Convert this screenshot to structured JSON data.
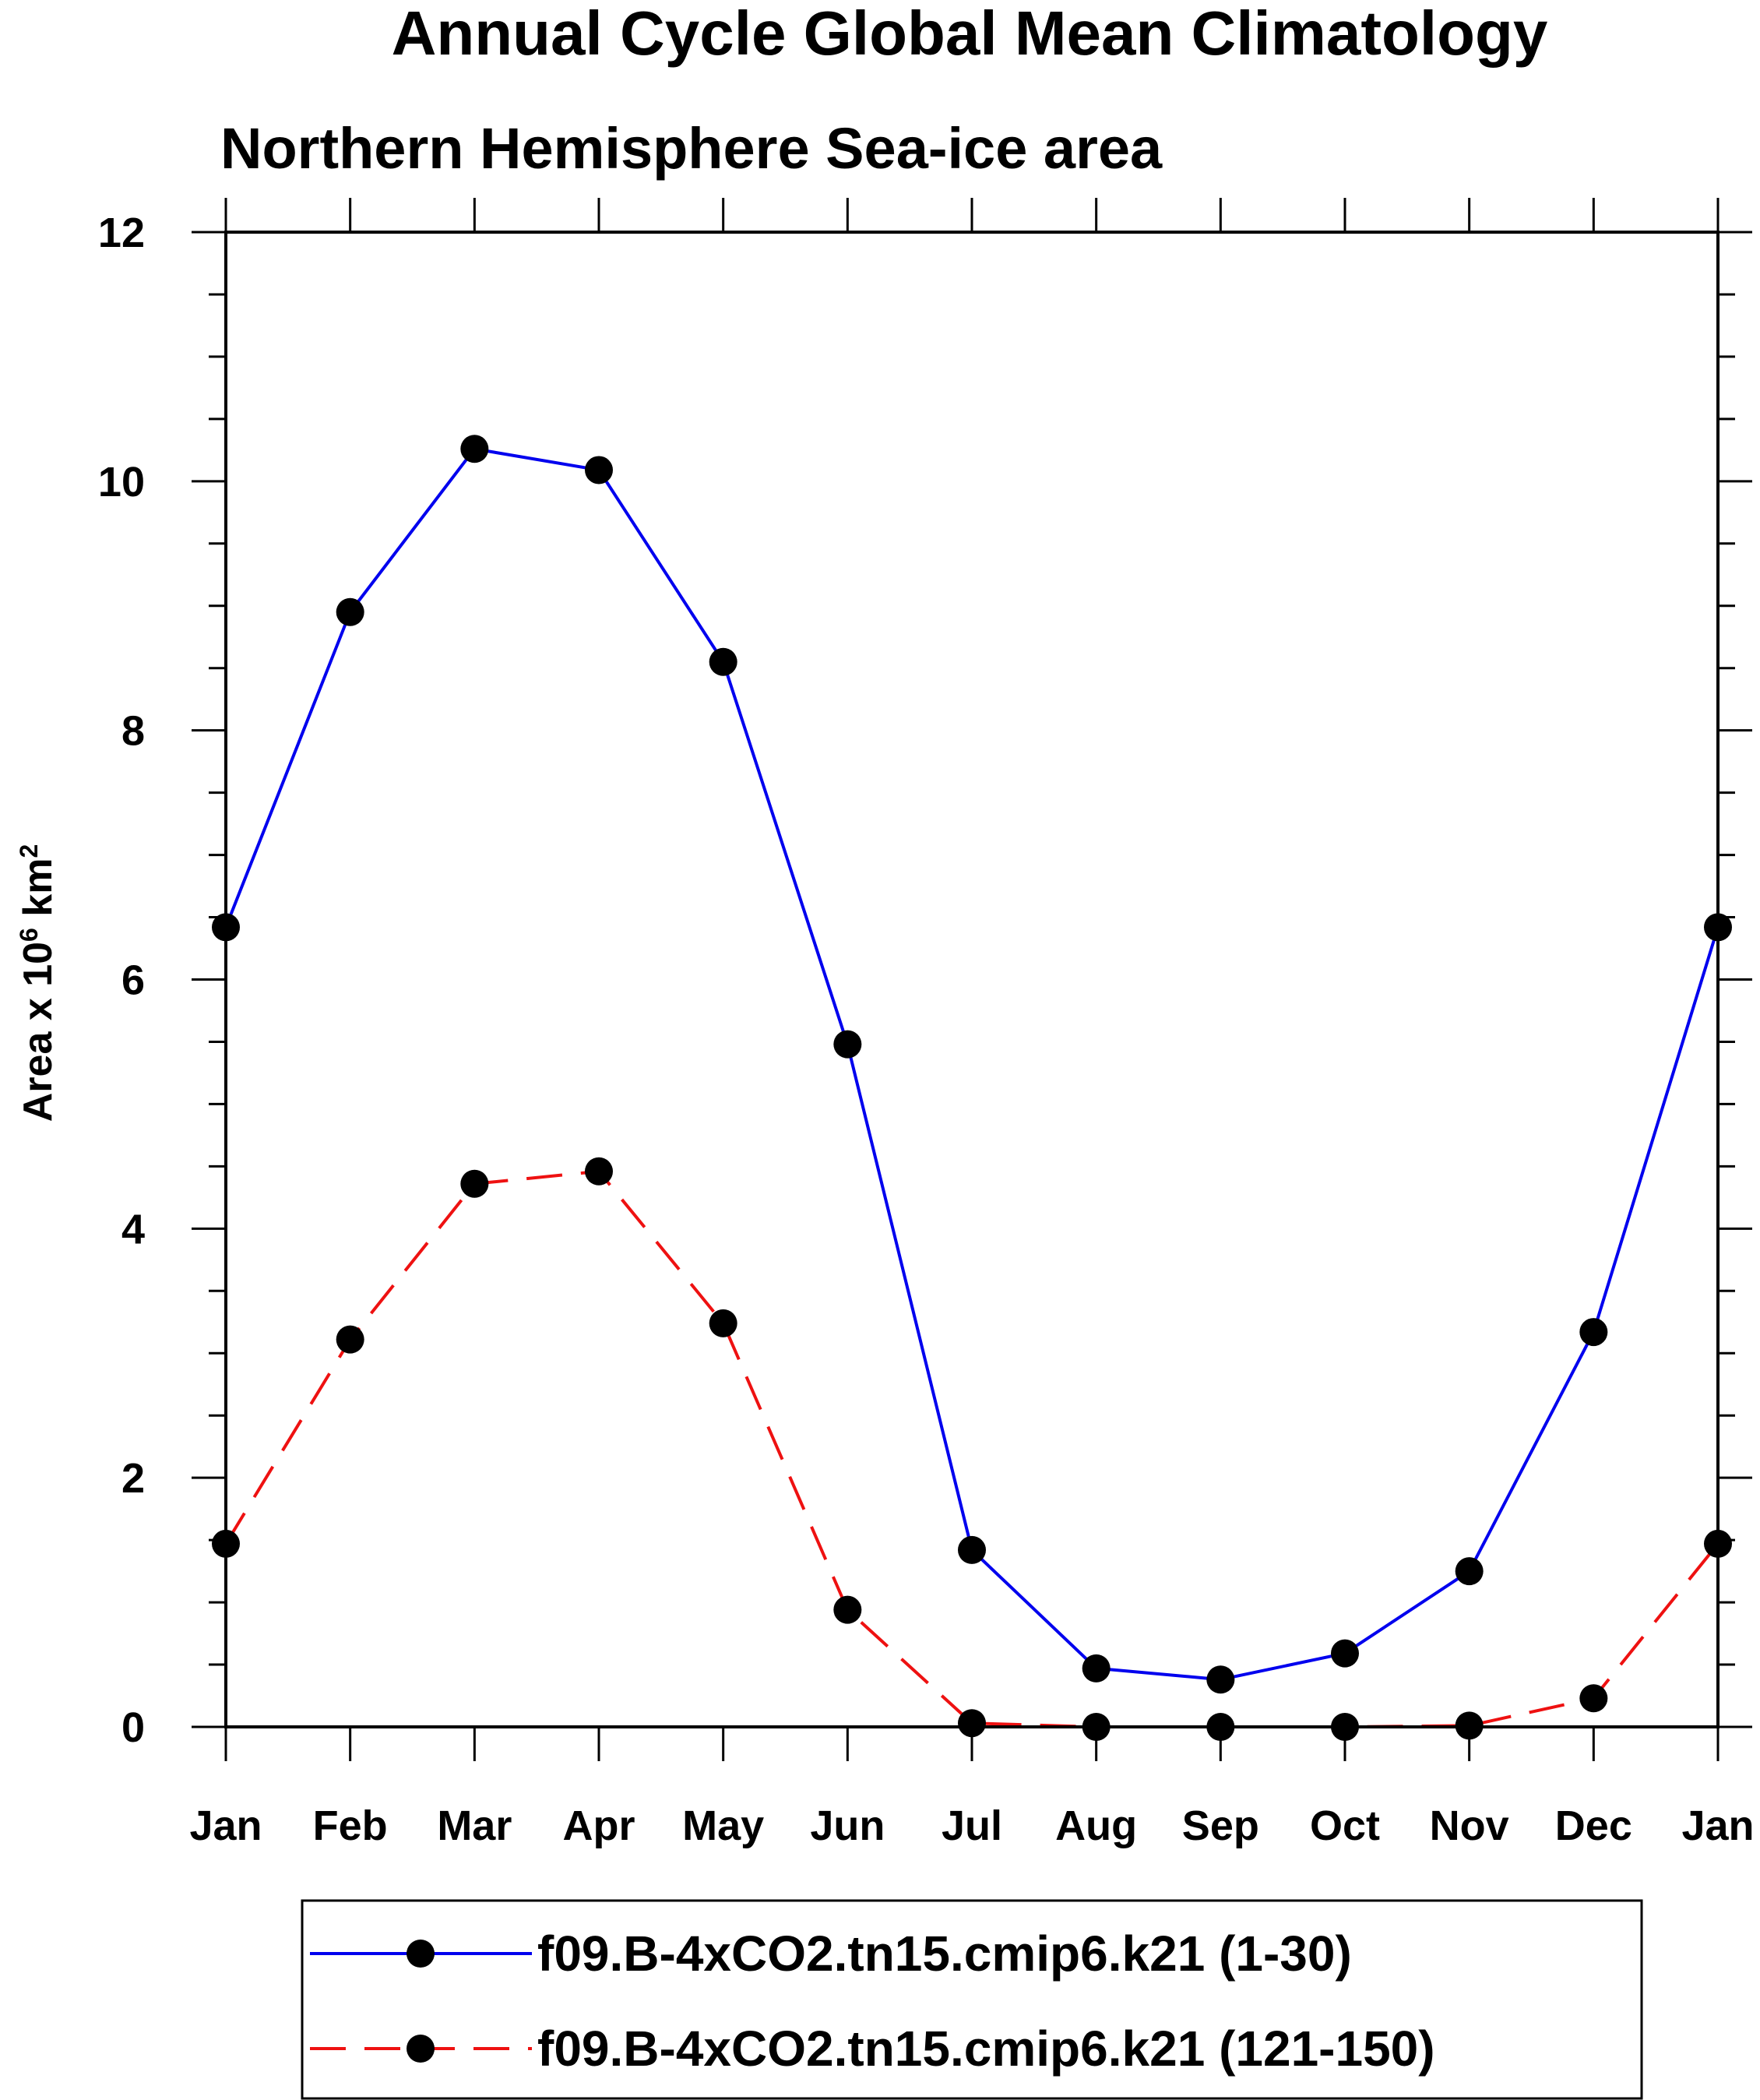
{
  "chart_data": {
    "type": "line",
    "title": "Annual Cycle Global Mean Climatology",
    "subtitle": "Northern Hemisphere Sea-ice area",
    "ylabel": {
      "text": "Area x 10",
      "sup1": "6",
      "unit": " km",
      "sup2": "2"
    },
    "xlabel": "",
    "categories": [
      "Jan",
      "Feb",
      "Mar",
      "Apr",
      "May",
      "Jun",
      "Jul",
      "Aug",
      "Sep",
      "Oct",
      "Nov",
      "Dec",
      "Jan"
    ],
    "ylim": [
      0,
      12
    ],
    "yticks": [
      0,
      2,
      4,
      6,
      8,
      10,
      12
    ],
    "grid": false,
    "legend_position": "bottom",
    "series": [
      {
        "name": "f09.B-4xCO2.tn15.cmip6.k21 (1-30)",
        "color": "#0000ee",
        "dash": "solid",
        "values": [
          6.42,
          8.95,
          10.26,
          10.09,
          8.55,
          5.48,
          1.42,
          0.47,
          0.38,
          0.59,
          1.25,
          3.17,
          6.42
        ]
      },
      {
        "name": "f09.B-4xCO2.tn15.cmip6.k21 (121-150)",
        "color": "#ee1111",
        "dash": "dashed",
        "values": [
          1.47,
          3.11,
          4.36,
          4.46,
          3.24,
          0.94,
          0.03,
          0.0,
          0.0,
          0.0,
          0.01,
          0.23,
          1.47
        ]
      }
    ]
  }
}
